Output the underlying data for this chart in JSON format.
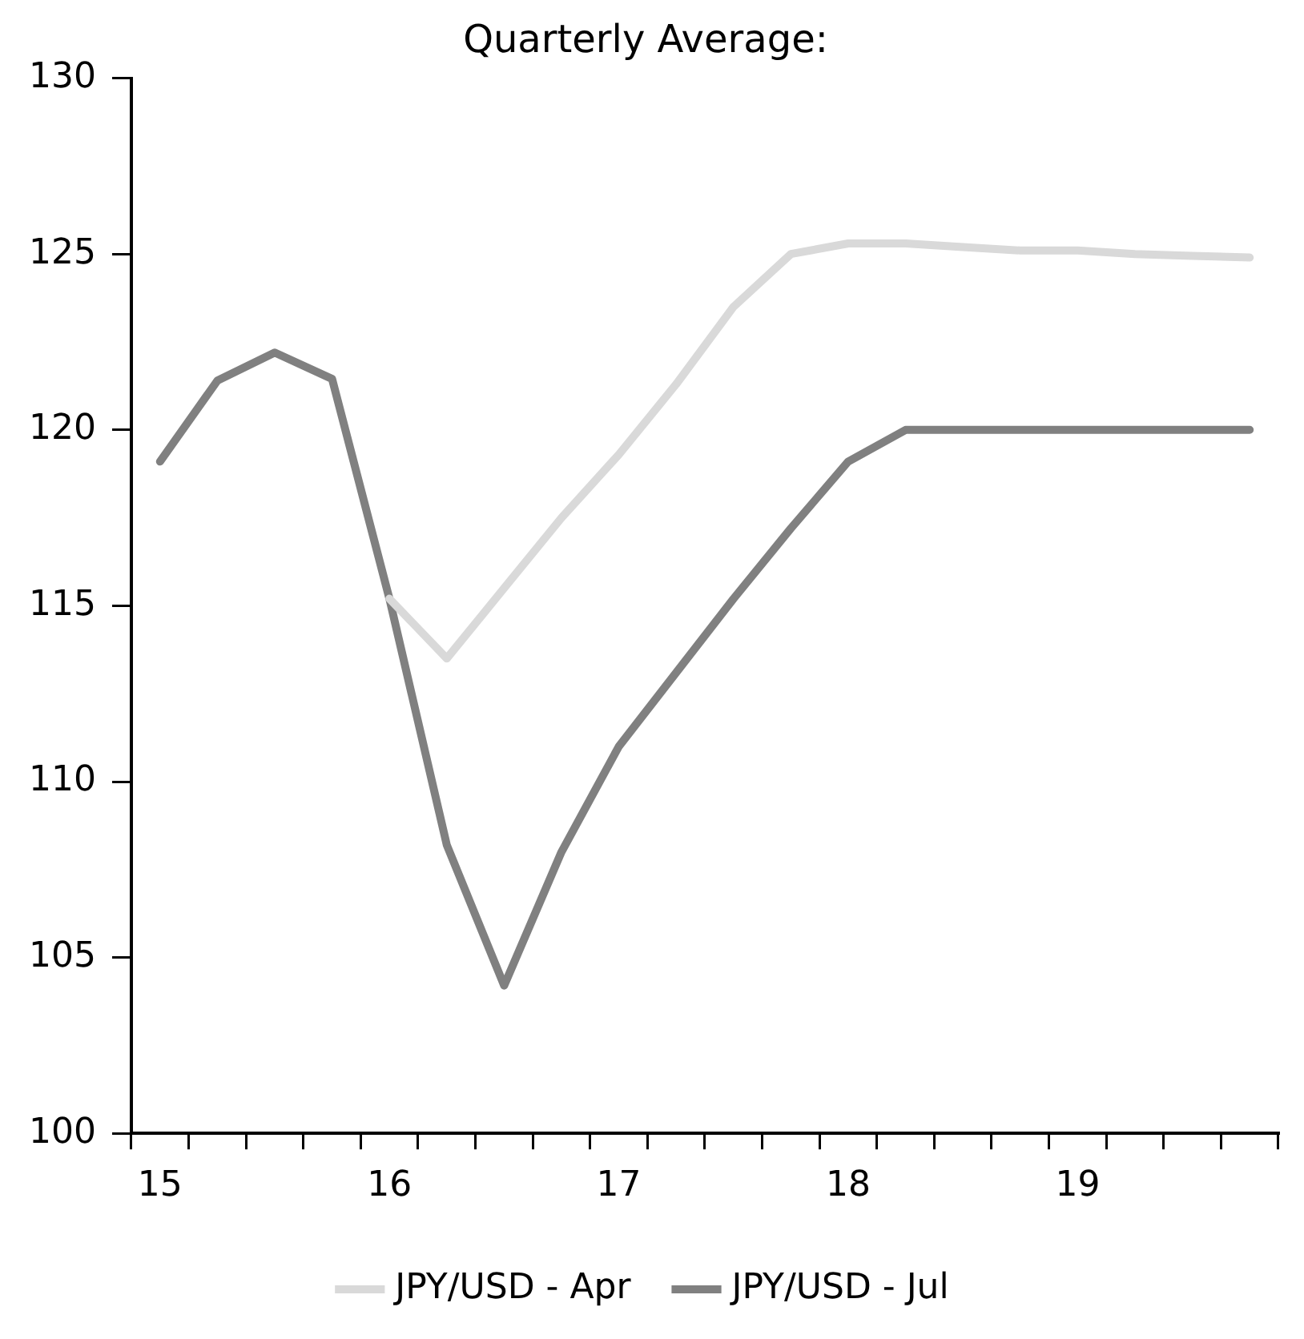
{
  "chart_data": {
    "type": "line",
    "title": "Quarterly Average:",
    "categories": [
      "15",
      null,
      null,
      null,
      "16",
      null,
      null,
      null,
      "17",
      null,
      null,
      null,
      "18",
      null,
      null,
      null,
      "19",
      null,
      null,
      null
    ],
    "series": [
      {
        "name": "JPY/USD - Apr",
        "color": "#d9d9d9",
        "values": [
          null,
          null,
          null,
          null,
          115.2,
          113.5,
          115.5,
          117.5,
          119.3,
          121.3,
          123.5,
          125.0,
          125.3,
          125.3,
          125.2,
          125.1,
          125.1,
          125.0,
          124.95,
          124.9
        ]
      },
      {
        "name": "JPY/USD - Jul",
        "color": "#808080",
        "values": [
          119.1,
          121.4,
          122.2,
          121.45,
          115.2,
          108.2,
          104.2,
          108.0,
          111.0,
          113.1,
          115.2,
          117.2,
          119.1,
          120.0,
          120.0,
          120.0,
          120.0,
          120.0,
          120.0,
          120.0
        ]
      }
    ],
    "ylim": [
      100,
      130
    ],
    "yticks": [
      100,
      105,
      110,
      115,
      120,
      125,
      130
    ],
    "grid": false,
    "legend": "bottom",
    "marker": "none",
    "line_style": "solid"
  }
}
